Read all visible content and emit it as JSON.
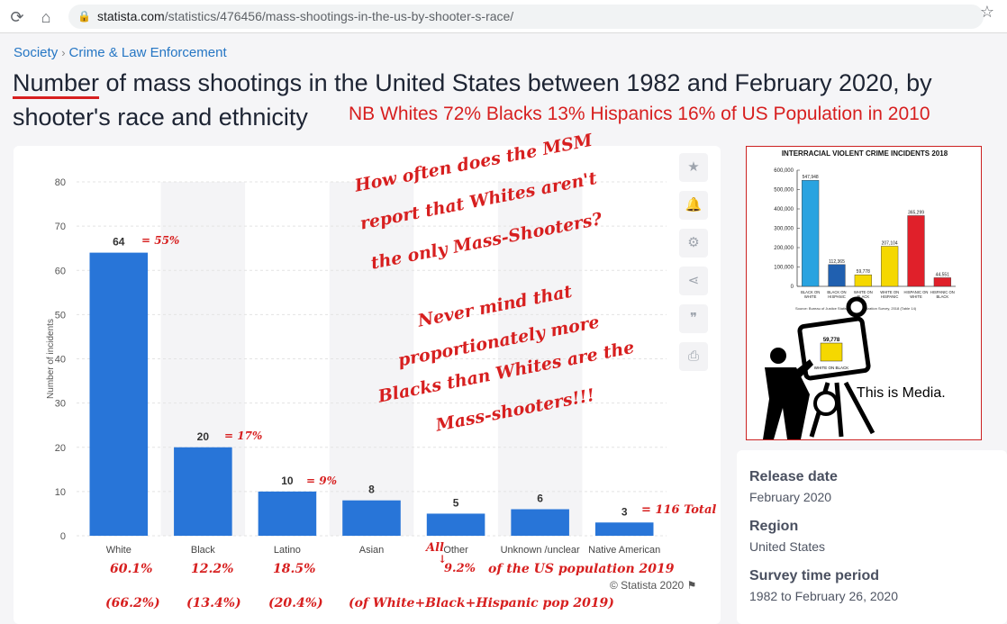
{
  "browser": {
    "url_domain": "statista.com",
    "url_path": "/statistics/476456/mass-shootings-in-the-us-by-shooter-s-race/"
  },
  "breadcrumb": {
    "items": [
      "Society",
      "Crime & Law Enforcement"
    ],
    "separator": "›"
  },
  "page": {
    "title_first": "Number",
    "title_rest": " of mass shootings in the United States between 1982 and February 2020, by shooter's race and ethnicity",
    "title_note": "NB Whites 72% Blacks 13% Hispanics 16% of US Population in 2010"
  },
  "chart_data": {
    "type": "bar",
    "categories": [
      "White",
      "Black",
      "Latino",
      "Asian",
      "Other",
      "Unknown /unclear",
      "Native American"
    ],
    "values": [
      64,
      20,
      10,
      8,
      5,
      6,
      3
    ],
    "ylabel": "Number of incidents",
    "ylim": [
      0,
      80
    ],
    "yticks": [
      0,
      10,
      20,
      30,
      40,
      50,
      60,
      70,
      80
    ],
    "grid": true,
    "bar_color": "#2875d8"
  },
  "annotations": {
    "question": [
      "How often does the MSM",
      "report that Whites aren't",
      "the only Mass-Shooters?"
    ],
    "claim": [
      "Never mind that",
      "proportionately more",
      "Blacks than Whites are the",
      "Mass-shooters!!!"
    ],
    "bar_shares": [
      "= 55%",
      "= 17%",
      "= 9%"
    ],
    "total": "= 116 Total",
    "pop_2019": [
      "60.1%",
      "12.2%",
      "18.5%"
    ],
    "other_prefix": "All",
    "other_pct": "9.2%",
    "pop_label": "of the US population 2019",
    "pop_wbh": [
      "(66.2%)",
      "(13.4%)",
      "(20.4%)"
    ],
    "pop_wbh_label": "(of White+Black+Hispanic pop 2019)"
  },
  "tools": [
    "star-icon",
    "bell-icon",
    "gear-icon",
    "share-icon",
    "quote-icon",
    "print-icon"
  ],
  "credit": "© Statista 2020",
  "meme": {
    "title": "INTERRACIAL VIOLENT CRIME INCIDENTS 2018",
    "yticks": [
      "600,000",
      "500,000",
      "400,000",
      "300,000",
      "200,000",
      "100,000",
      "0"
    ],
    "categories": [
      "BLACK ON WHITE",
      "BLACK ON HISPANIC",
      "WHITE ON BLACK",
      "WHITE ON HISPANIC",
      "HISPANIC ON WHITE",
      "HISPANIC ON BLACK"
    ],
    "values": [
      547948,
      112365,
      59778,
      207104,
      365299,
      44551
    ],
    "value_labels": [
      "547,948",
      "112,365",
      "59,778",
      "207,104",
      "365,299",
      "44,551"
    ],
    "colors": [
      "#29a3e0",
      "#2060b0",
      "#f5d800",
      "#f5d800",
      "#e0202a",
      "#e0202a"
    ],
    "source": "Source: Bureau of Justice Statistics ... Victimization Survey, 2018 (Table 14)",
    "tv_value": "59,778",
    "tv_label": "WHITE ON BLACK",
    "caption": "This is Media."
  },
  "info": {
    "release_label": "Release date",
    "release_value": "February 2020",
    "region_label": "Region",
    "region_value": "United States",
    "period_label": "Survey time period",
    "period_value": "1982 to February 26, 2020"
  }
}
